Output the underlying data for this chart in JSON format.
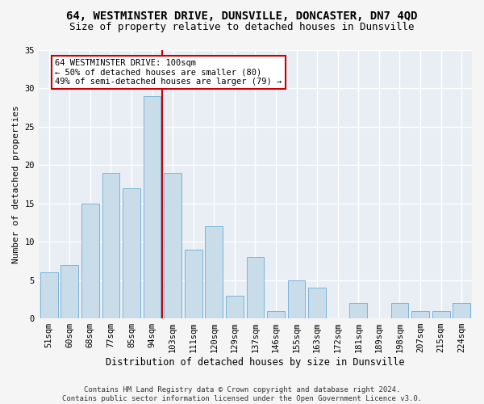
{
  "title1": "64, WESTMINSTER DRIVE, DUNSVILLE, DONCASTER, DN7 4QD",
  "title2": "Size of property relative to detached houses in Dunsville",
  "xlabel": "Distribution of detached houses by size in Dunsville",
  "ylabel": "Number of detached properties",
  "footer": "Contains HM Land Registry data © Crown copyright and database right 2024.\nContains public sector information licensed under the Open Government Licence v3.0.",
  "bin_labels": [
    "51sqm",
    "60sqm",
    "68sqm",
    "77sqm",
    "85sqm",
    "94sqm",
    "103sqm",
    "111sqm",
    "120sqm",
    "129sqm",
    "137sqm",
    "146sqm",
    "155sqm",
    "163sqm",
    "172sqm",
    "181sqm",
    "189sqm",
    "198sqm",
    "207sqm",
    "215sqm",
    "224sqm"
  ],
  "bar_heights": [
    6,
    7,
    15,
    19,
    17,
    29,
    19,
    9,
    12,
    3,
    8,
    1,
    5,
    4,
    0,
    2,
    0,
    2,
    1,
    1,
    2
  ],
  "bar_color": "#c9dcea",
  "bar_edgecolor": "#7ab5d8",
  "vline_x": 5.5,
  "vline_color": "#cc0000",
  "annotation_text": "64 WESTMINSTER DRIVE: 100sqm\n← 50% of detached houses are smaller (80)\n49% of semi-detached houses are larger (79) →",
  "annotation_box_edgecolor": "#cc0000",
  "ylim": [
    0,
    35
  ],
  "yticks": [
    0,
    5,
    10,
    15,
    20,
    25,
    30,
    35
  ],
  "bg_color": "#e8eef4",
  "grid_color": "#ffffff",
  "fig_bg_color": "#f5f5f5",
  "title1_fontsize": 10,
  "title2_fontsize": 9,
  "xlabel_fontsize": 8.5,
  "ylabel_fontsize": 8,
  "tick_fontsize": 7.5,
  "annot_fontsize": 7.5,
  "footer_fontsize": 6.5
}
